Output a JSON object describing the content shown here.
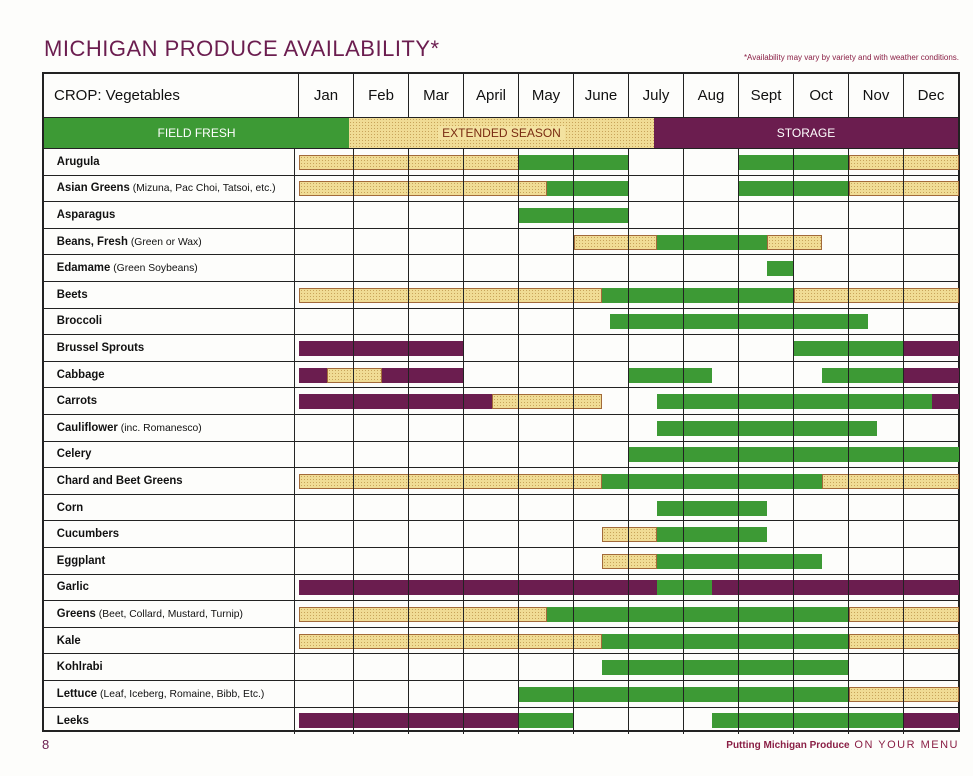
{
  "header": {
    "title": "MICHIGAN PRODUCE AVAILABILITY*",
    "note": "*Availability may vary by variety and with weather conditions."
  },
  "table": {
    "crop_header": "CROP: Vegetables",
    "months": [
      "Jan",
      "Feb",
      "Mar",
      "April",
      "May",
      "June",
      "July",
      "Aug",
      "Sept",
      "Oct",
      "Nov",
      "Dec"
    ]
  },
  "legend": {
    "field_fresh": "FIELD FRESH",
    "extended_season": "EXTENDED SEASON",
    "storage": "STORAGE"
  },
  "colors": {
    "field_fresh": "#3d9a35",
    "extended_season": "#f0dc95",
    "storage": "#6b1d4f",
    "title": "#6b1d4f"
  },
  "crops": [
    {
      "name": "Arugula",
      "detail": "",
      "bars": [
        [
          "ext",
          0,
          4
        ],
        [
          "field",
          4,
          6
        ],
        [
          "field",
          8,
          10
        ],
        [
          "ext",
          10,
          12
        ]
      ]
    },
    {
      "name": "Asian Greens",
      "detail": "(Mizuna, Pac Choi, Tatsoi, etc.)",
      "bars": [
        [
          "ext",
          0,
          4.5
        ],
        [
          "field",
          4.5,
          6
        ],
        [
          "field",
          8,
          10
        ],
        [
          "ext",
          10,
          12
        ]
      ]
    },
    {
      "name": "Asparagus",
      "detail": "",
      "bars": [
        [
          "field",
          4,
          6
        ]
      ]
    },
    {
      "name": "Beans, Fresh",
      "detail": "(Green or Wax)",
      "bars": [
        [
          "ext",
          5,
          6.5
        ],
        [
          "field",
          6.5,
          8.5
        ],
        [
          "ext",
          8.5,
          9.5
        ]
      ]
    },
    {
      "name": "Edamame",
      "detail": "(Green Soybeans)",
      "bars": [
        [
          "field",
          8.5,
          9
        ]
      ]
    },
    {
      "name": "Beets",
      "detail": "",
      "bars": [
        [
          "ext",
          0,
          5.5
        ],
        [
          "field",
          5.5,
          9
        ],
        [
          "ext",
          9,
          12
        ]
      ]
    },
    {
      "name": "Broccoli",
      "detail": "",
      "bars": [
        [
          "field",
          5.65,
          10.35
        ]
      ]
    },
    {
      "name": "Brussel Sprouts",
      "detail": "",
      "bars": [
        [
          "storage",
          0,
          3
        ],
        [
          "field",
          9,
          11
        ],
        [
          "storage",
          11,
          12
        ]
      ]
    },
    {
      "name": "Cabbage",
      "detail": "",
      "bars": [
        [
          "storage",
          0,
          0.5
        ],
        [
          "ext",
          0.5,
          1.5
        ],
        [
          "storage",
          1.5,
          3
        ],
        [
          "field",
          6,
          7.5
        ],
        [
          "field",
          9.5,
          11
        ],
        [
          "storage",
          11,
          12
        ]
      ]
    },
    {
      "name": "Carrots",
      "detail": "",
      "bars": [
        [
          "storage",
          0,
          3.5
        ],
        [
          "ext",
          3.5,
          5.5
        ],
        [
          "field",
          6.5,
          11.5
        ],
        [
          "storage",
          11.5,
          12
        ]
      ]
    },
    {
      "name": "Cauliflower",
      "detail": "(inc. Romanesco)",
      "bars": [
        [
          "field",
          6.5,
          10.5
        ]
      ]
    },
    {
      "name": "Celery",
      "detail": "",
      "bars": [
        [
          "field",
          6,
          12
        ]
      ]
    },
    {
      "name": "Chard and Beet Greens",
      "detail": "",
      "bars": [
        [
          "ext",
          0,
          5.5
        ],
        [
          "field",
          5.5,
          9.5
        ],
        [
          "ext",
          9.5,
          12
        ]
      ]
    },
    {
      "name": "Corn",
      "detail": "",
      "bars": [
        [
          "field",
          6.5,
          8.5
        ]
      ]
    },
    {
      "name": "Cucumbers",
      "detail": "",
      "bars": [
        [
          "ext",
          5.5,
          6.5
        ],
        [
          "field",
          6.5,
          8.5
        ]
      ]
    },
    {
      "name": "Eggplant",
      "detail": "",
      "bars": [
        [
          "ext",
          5.5,
          6.5
        ],
        [
          "field",
          6.5,
          9.5
        ]
      ]
    },
    {
      "name": "Garlic",
      "detail": "",
      "bars": [
        [
          "storage",
          0,
          6.5
        ],
        [
          "field",
          6.5,
          7.5
        ],
        [
          "storage",
          7.5,
          12
        ]
      ]
    },
    {
      "name": "Greens",
      "detail": "(Beet, Collard, Mustard, Turnip)",
      "bars": [
        [
          "ext",
          0,
          4.5
        ],
        [
          "field",
          4.5,
          10
        ],
        [
          "ext",
          10,
          12
        ]
      ]
    },
    {
      "name": "Kale",
      "detail": "",
      "bars": [
        [
          "ext",
          0,
          5.5
        ],
        [
          "field",
          5.5,
          10
        ],
        [
          "ext",
          10,
          12
        ]
      ]
    },
    {
      "name": "Kohlrabi",
      "detail": "",
      "bars": [
        [
          "field",
          5.5,
          10
        ]
      ]
    },
    {
      "name": "Lettuce",
      "detail": "(Leaf, Iceberg, Romaine, Bibb, Etc.)",
      "bars": [
        [
          "field",
          4,
          10
        ],
        [
          "ext",
          10,
          12
        ]
      ]
    },
    {
      "name": "Leeks",
      "detail": "",
      "bars": [
        [
          "storage",
          0,
          4
        ],
        [
          "field",
          4,
          5
        ],
        [
          "field",
          7.5,
          11
        ],
        [
          "storage",
          11,
          12
        ]
      ]
    }
  ],
  "footer": {
    "page_number": "8",
    "tagline_bold": "Putting Michigan Produce",
    "tagline_rest": "ON YOUR MENU"
  }
}
